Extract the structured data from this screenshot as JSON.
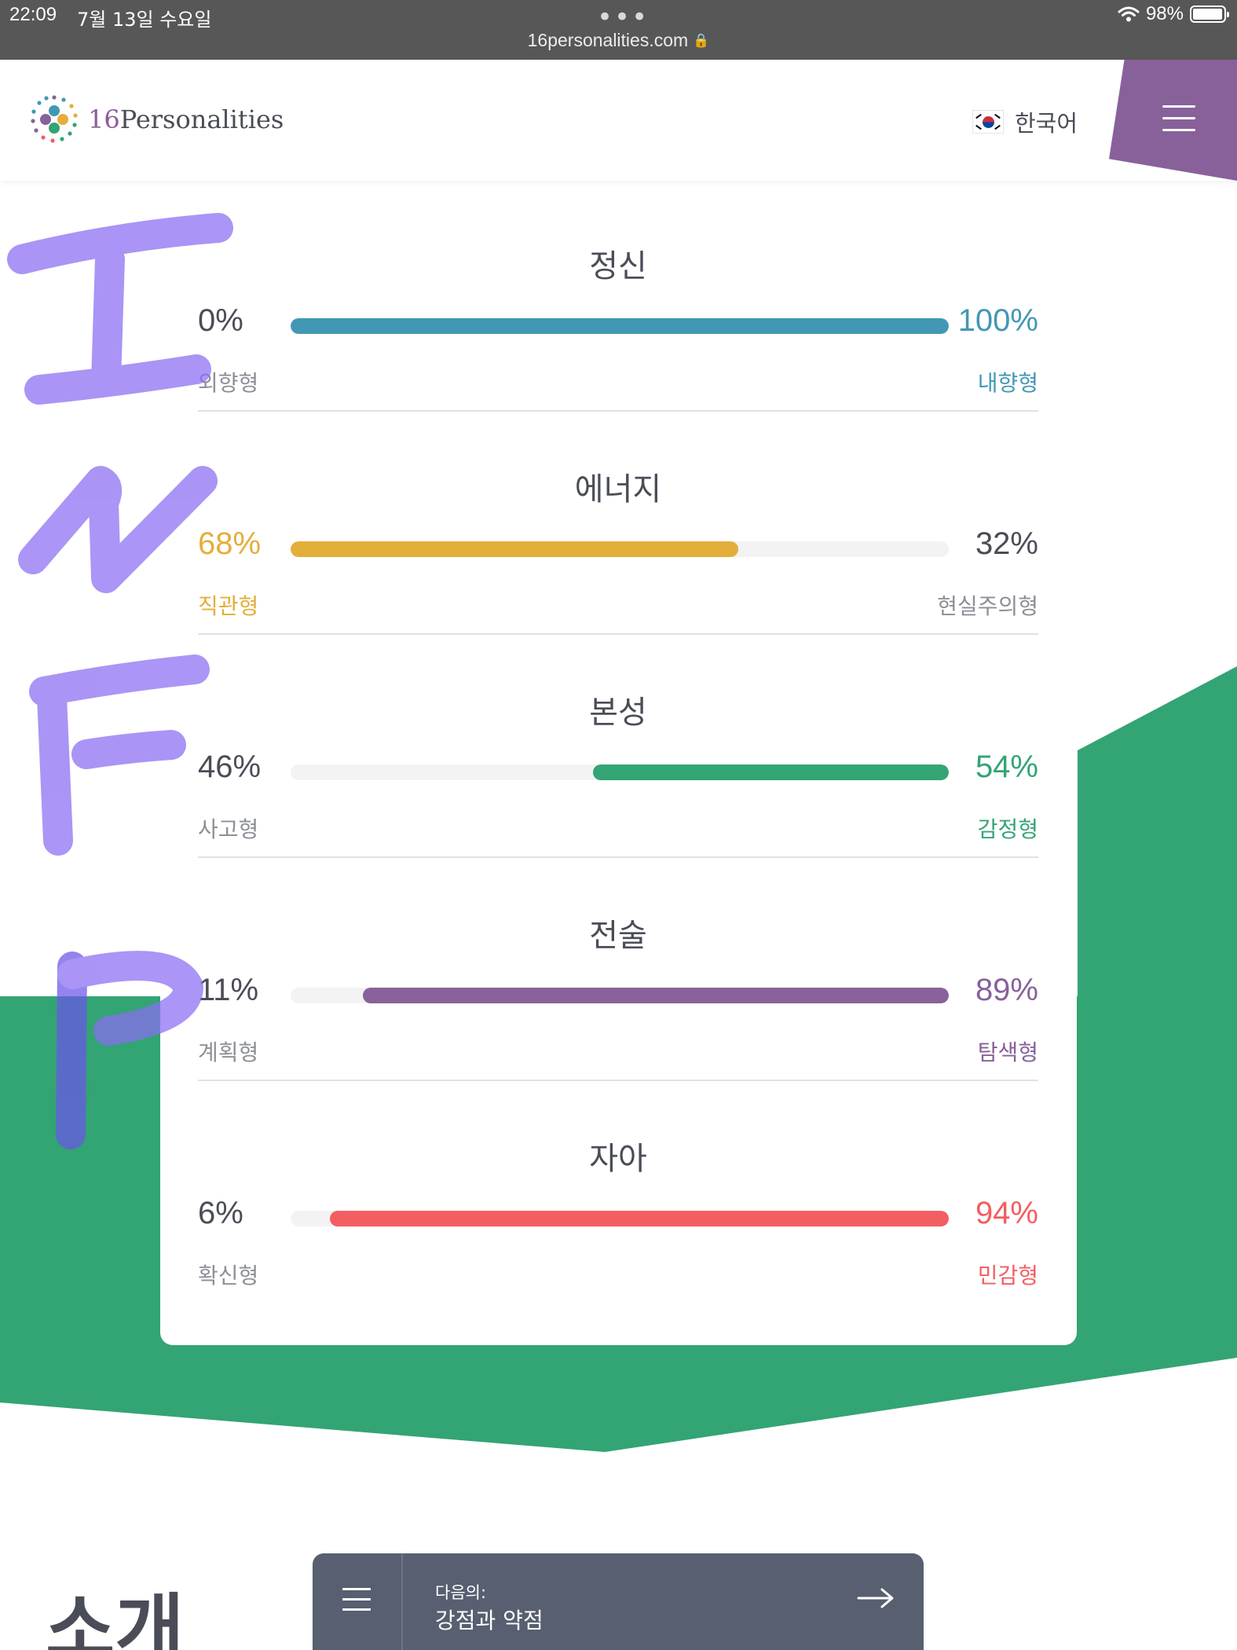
{
  "status_bar": {
    "time": "22:09",
    "date": "7월 13일 수요일",
    "url": "16personalities.com",
    "battery": "98%"
  },
  "header": {
    "logo_num": "16",
    "logo_word": "Personalities",
    "language": "한국어"
  },
  "traits": [
    {
      "title": "정신",
      "left_pct": "0%",
      "right_pct": "100%",
      "left_label": "외향형",
      "right_label": "내향형",
      "color": "#4298b4",
      "highlight": "right",
      "fill_from": 0,
      "fill_to": 1
    },
    {
      "title": "에너지",
      "left_pct": "68%",
      "right_pct": "32%",
      "left_label": "직관형",
      "right_label": "현실주의형",
      "color": "#e4ae3a",
      "highlight": "left",
      "fill_from": 0,
      "fill_to": 0.68
    },
    {
      "title": "본성",
      "left_pct": "46%",
      "right_pct": "54%",
      "left_label": "사고형",
      "right_label": "감정형",
      "color": "#33a474",
      "highlight": "right",
      "fill_from": 0.46,
      "fill_to": 1
    },
    {
      "title": "전술",
      "left_pct": "11%",
      "right_pct": "89%",
      "left_label": "계획형",
      "right_label": "탐색형",
      "color": "#88619a",
      "highlight": "right",
      "fill_from": 0.11,
      "fill_to": 1
    },
    {
      "title": "자아",
      "left_pct": "6%",
      "right_pct": "94%",
      "left_label": "확신형",
      "right_label": "민감형",
      "color": "#f25e62",
      "highlight": "right",
      "fill_from": 0.06,
      "fill_to": 1
    }
  ],
  "colors": {
    "text_dark": "#4a4d57",
    "text_muted": "#8c8f96",
    "green": "#33a474",
    "purple": "#88619a",
    "handwriting": "#8a6cf2"
  },
  "handwriting_letters": [
    "I",
    "N",
    "F",
    "P"
  ],
  "section_title": "소개",
  "bottom_nav": {
    "next_label": "다음의:",
    "next_title": "강점과 약점"
  }
}
